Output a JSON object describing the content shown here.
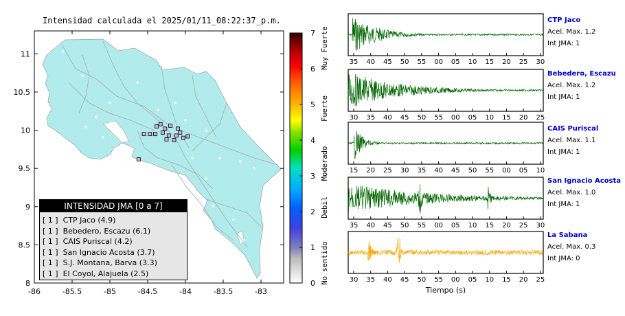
{
  "map": {
    "title": "Intensidad calculada el 2025/01/11_08:22:37_p.m.",
    "x_ticks": [
      "-86",
      "-85.5",
      "-85",
      "-84.5",
      "-84",
      "-83.5",
      "-83"
    ],
    "y_ticks": [
      "11",
      "10.5",
      "10",
      "9.5",
      "9",
      "8.5",
      "8"
    ],
    "xlim": [
      -86,
      -82.7
    ],
    "ylim": [
      8,
      11.3
    ],
    "land_color": "#b2ebeb",
    "sea_color": "#ffffff",
    "stations": [
      {
        "lon": -84.55,
        "lat": 9.95
      },
      {
        "lon": -84.47,
        "lat": 9.95
      },
      {
        "lon": -84.38,
        "lat": 10.05
      },
      {
        "lon": -84.33,
        "lat": 10.08
      },
      {
        "lon": -84.27,
        "lat": 10.02
      },
      {
        "lon": -84.2,
        "lat": 10.06
      },
      {
        "lon": -84.1,
        "lat": 10.02
      },
      {
        "lon": -84.03,
        "lat": 9.9
      },
      {
        "lon": -84.12,
        "lat": 9.93
      },
      {
        "lon": -84.22,
        "lat": 9.93
      },
      {
        "lon": -84.3,
        "lat": 9.97
      },
      {
        "lon": -84.4,
        "lat": 9.95
      },
      {
        "lon": -84.07,
        "lat": 9.97
      },
      {
        "lon": -83.97,
        "lat": 9.92
      },
      {
        "lon": -84.15,
        "lat": 9.87
      },
      {
        "lon": -84.25,
        "lat": 9.88
      },
      {
        "lon": -84.62,
        "lat": 9.62
      }
    ]
  },
  "colorbar": {
    "ticks": [
      "7",
      "6",
      "5",
      "4",
      "3",
      "2",
      "1",
      "0"
    ],
    "labels": [
      "Muy Fuerte",
      "Fuerte",
      "Moderado",
      "Debil",
      "No sentido"
    ]
  },
  "legend": {
    "header": "INTENSIDAD JMA [0 a 7]",
    "items": [
      "[ 1 ]  CTP Jaco (4.9)",
      "[ 1 ]  Bebedero, Escazu (6.1)",
      "[ 1 ]  CAIS Puriscal (4.2)",
      "[ 1 ]  San Ignacio Acosta (3.7)",
      "[ 1 ]  S.J. Montana, Barva (3.3)",
      "[ 1 ]  El Coyol, Alajuela (2.5)"
    ]
  },
  "traces": {
    "xlabel": "Tiempo (s)",
    "panels": [
      {
        "name": "CTP Jaco",
        "accel": "Acel. Max. 1.2",
        "int": "Int JMA: 1",
        "color": "#006400",
        "ticks": [
          "35",
          "40",
          "45",
          "50",
          "55",
          "00",
          "05",
          "10",
          "15",
          "20",
          "25",
          "30"
        ]
      },
      {
        "name": "Bebedero, Escazu",
        "accel": "Acel. Max. 1.2",
        "int": "Int JMA: 1",
        "color": "#006400",
        "ticks": [
          "30",
          "35",
          "40",
          "45",
          "50",
          "55",
          "00",
          "05",
          "10",
          "15",
          "20",
          "25"
        ]
      },
      {
        "name": "CAIS Puriscal",
        "accel": "Acel. Max. 1.1",
        "int": "Int JMA: 1",
        "color": "#006400",
        "ticks": [
          "15",
          "20",
          "25",
          "30",
          "35",
          "40",
          "45",
          "50",
          "55",
          "00",
          "05",
          "10"
        ]
      },
      {
        "name": "San Ignacio Acosta",
        "accel": "Acel. Max. 1.0",
        "int": "Int JMA: 1",
        "color": "#006400",
        "ticks": [
          "35",
          "40",
          "45",
          "50",
          "55",
          "00",
          "05",
          "10",
          "15",
          "20",
          "25",
          "30"
        ]
      },
      {
        "name": "La Sabana",
        "accel": "Acel. Max. 0.3",
        "int": "Int JMA: 0",
        "color": "#ffa500",
        "ticks": [
          "30",
          "35",
          "40",
          "45",
          "50",
          "55",
          "00",
          "05",
          "10",
          "15",
          "20",
          "25"
        ]
      }
    ]
  }
}
